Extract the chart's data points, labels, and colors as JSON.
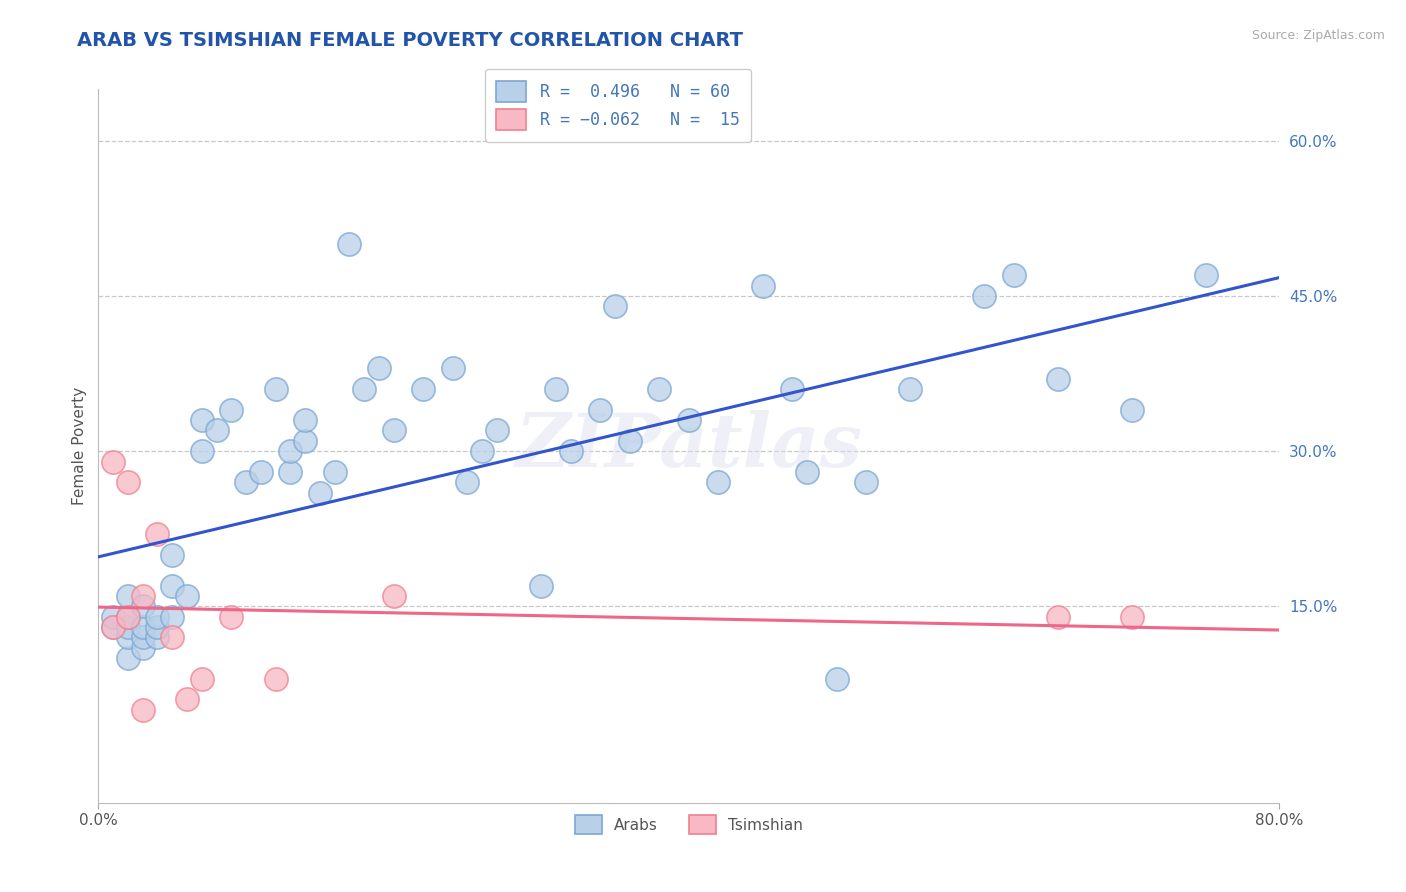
{
  "title": "ARAB VS TSIMSHIAN FEMALE POVERTY CORRELATION CHART",
  "source": "Source: ZipAtlas.com",
  "ylabel": "Female Poverty",
  "legend_arab": "Arabs",
  "legend_tsimshian": "Tsimshian",
  "arab_R": 0.496,
  "arab_N": 60,
  "tsimshian_R": -0.062,
  "tsimshian_N": 15,
  "xlim": [
    0.0,
    0.8
  ],
  "ylim": [
    -0.04,
    0.65
  ],
  "yticks": [
    0.15,
    0.3,
    0.45,
    0.6
  ],
  "ytick_labels": [
    "15.0%",
    "30.0%",
    "45.0%",
    "60.0%"
  ],
  "grid_color": "#c8c8c8",
  "arab_color": "#7ba7d4",
  "arab_fill": "#b8d0e8",
  "tsimshian_color": "#f08090",
  "tsimshian_fill": "#f8b8c4",
  "title_color": "#2255aa",
  "source_color": "#aaaaaa",
  "watermark": "ZIPatlas",
  "regression_arab_color": "#3355cc",
  "regression_tsimshian_color": "#ee6688",
  "arab_x": [
    0.01,
    0.01,
    0.02,
    0.02,
    0.02,
    0.02,
    0.02,
    0.03,
    0.03,
    0.03,
    0.03,
    0.04,
    0.04,
    0.04,
    0.05,
    0.05,
    0.05,
    0.06,
    0.07,
    0.07,
    0.08,
    0.09,
    0.1,
    0.11,
    0.12,
    0.13,
    0.13,
    0.14,
    0.14,
    0.15,
    0.16,
    0.17,
    0.18,
    0.19,
    0.2,
    0.22,
    0.24,
    0.25,
    0.26,
    0.27,
    0.3,
    0.31,
    0.32,
    0.34,
    0.35,
    0.36,
    0.38,
    0.4,
    0.42,
    0.45,
    0.47,
    0.48,
    0.5,
    0.52,
    0.55,
    0.6,
    0.62,
    0.65,
    0.7,
    0.75
  ],
  "arab_y": [
    0.13,
    0.14,
    0.1,
    0.12,
    0.13,
    0.14,
    0.16,
    0.11,
    0.12,
    0.13,
    0.15,
    0.12,
    0.13,
    0.14,
    0.14,
    0.17,
    0.2,
    0.16,
    0.3,
    0.33,
    0.32,
    0.34,
    0.27,
    0.28,
    0.36,
    0.28,
    0.3,
    0.31,
    0.33,
    0.26,
    0.28,
    0.5,
    0.36,
    0.38,
    0.32,
    0.36,
    0.38,
    0.27,
    0.3,
    0.32,
    0.17,
    0.36,
    0.3,
    0.34,
    0.44,
    0.31,
    0.36,
    0.33,
    0.27,
    0.46,
    0.36,
    0.28,
    0.08,
    0.27,
    0.36,
    0.45,
    0.47,
    0.37,
    0.34,
    0.47
  ],
  "tsimshian_x": [
    0.01,
    0.01,
    0.02,
    0.02,
    0.03,
    0.03,
    0.04,
    0.05,
    0.06,
    0.07,
    0.09,
    0.12,
    0.2,
    0.65,
    0.7
  ],
  "tsimshian_y": [
    0.13,
    0.29,
    0.27,
    0.14,
    0.05,
    0.16,
    0.22,
    0.12,
    0.06,
    0.08,
    0.14,
    0.08,
    0.16,
    0.14,
    0.14
  ]
}
